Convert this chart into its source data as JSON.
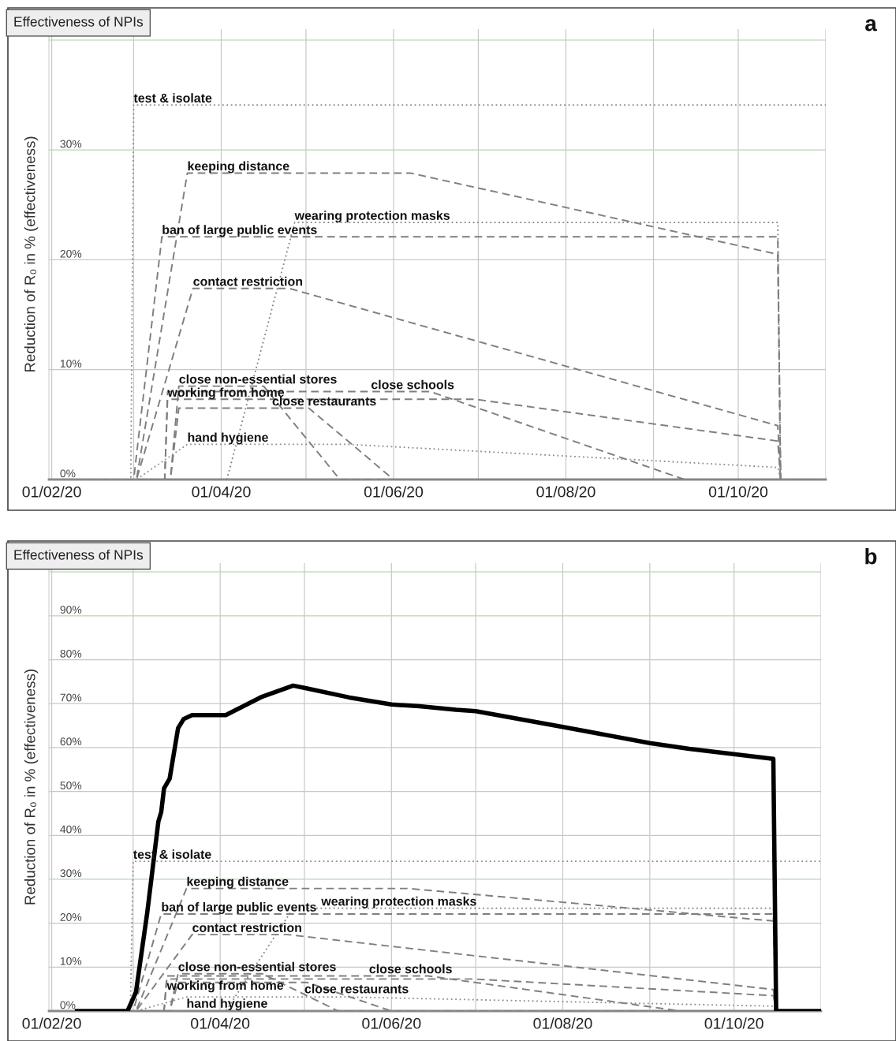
{
  "chart_data": [
    {
      "type": "line",
      "title": "Effectiveness of NPIs",
      "ylabel": "Reduction of R₀ in % (effectiveness)",
      "annotations": [
        "a"
      ],
      "grid": true,
      "xlim": [
        "2020-01-31",
        "2020-11-01"
      ],
      "xticks": [
        {
          "value": "2020-02-01",
          "label": "01/02/20"
        },
        {
          "value": "2020-03-01",
          "label": null
        },
        {
          "value": "2020-04-01",
          "label": "01/04/20"
        },
        {
          "value": "2020-05-01",
          "label": null
        },
        {
          "value": "2020-06-01",
          "label": "01/06/20"
        },
        {
          "value": "2020-07-01",
          "label": null
        },
        {
          "value": "2020-08-01",
          "label": "01/08/20"
        },
        {
          "value": "2020-09-01",
          "label": null
        },
        {
          "value": "2020-10-01",
          "label": "01/10/20"
        },
        {
          "value": "2020-11-01",
          "label": null
        }
      ],
      "ylim": [
        0,
        41
      ],
      "yticks": [
        {
          "value": 0,
          "label": "0%"
        },
        {
          "value": 10,
          "label": "10%"
        },
        {
          "value": 20,
          "label": "20%"
        },
        {
          "value": 30,
          "label": "30%"
        },
        {
          "value": 40,
          "label": null
        }
      ],
      "series": [
        {
          "name": "test & isolate",
          "color": "#8c8c8c",
          "line_style": "dotted",
          "x": [
            "2020-02-10",
            "2020-02-29",
            "2020-03-01",
            "2020-11-01"
          ],
          "values": [
            0,
            0,
            34.1,
            34.1
          ]
        },
        {
          "name": "keeping distance",
          "color": "#7f7f7f",
          "line_style": "dashed",
          "x": [
            "2020-02-10",
            "2020-03-02",
            "2020-03-20",
            "2020-06-07",
            "2020-10-15",
            "2020-10-16",
            "2020-11-01"
          ],
          "values": [
            0,
            0,
            27.9,
            27.9,
            20.5,
            0,
            0
          ]
        },
        {
          "name": "wearing protection masks",
          "color": "#7f7f7f",
          "line_style": "dotted",
          "x": [
            "2020-02-10",
            "2020-04-03",
            "2020-04-27",
            "2020-10-15",
            "2020-10-16",
            "2020-11-01"
          ],
          "values": [
            0,
            0,
            23.4,
            23.4,
            0,
            0
          ]
        },
        {
          "name": "ban of large public events",
          "color": "#7f7f7f",
          "line_style": "dashed",
          "x": [
            "2020-02-10",
            "2020-03-01",
            "2020-03-11",
            "2020-10-15",
            "2020-10-16",
            "2020-11-01"
          ],
          "values": [
            0,
            0,
            22.1,
            22.1,
            0,
            0
          ]
        },
        {
          "name": "contact restriction",
          "color": "#7f7f7f",
          "line_style": "dashed",
          "x": [
            "2020-02-10",
            "2020-03-02",
            "2020-03-22",
            "2020-04-25",
            "2020-10-15",
            "2020-10-16",
            "2020-11-01"
          ],
          "values": [
            0,
            0,
            17.4,
            17.4,
            4.9,
            0,
            0
          ]
        },
        {
          "name": "close non-essential stores",
          "color": "#7f7f7f",
          "line_style": "dashed",
          "x": [
            "2020-02-10",
            "2020-03-14",
            "2020-03-17",
            "2020-04-16",
            "2020-05-13",
            "2020-11-01"
          ],
          "values": [
            0,
            0,
            8.5,
            8.5,
            0,
            0
          ]
        },
        {
          "name": "working from home",
          "color": "#7f7f7f",
          "line_style": "dashed",
          "x": [
            "2020-02-10",
            "2020-03-12",
            "2020-03-13",
            "2020-06-30",
            "2020-10-15",
            "2020-10-16",
            "2020-11-01"
          ],
          "values": [
            0,
            0,
            7.3,
            7.3,
            3.5,
            0,
            0
          ]
        },
        {
          "name": "close restaurants",
          "color": "#7f7f7f",
          "line_style": "dashed",
          "x": [
            "2020-02-10",
            "2020-03-14",
            "2020-03-17",
            "2020-05-02",
            "2020-06-01",
            "2020-11-01"
          ],
          "values": [
            0,
            0,
            6.5,
            6.5,
            0,
            0
          ]
        },
        {
          "name": "close schools",
          "color": "#7f7f7f",
          "line_style": "dashed",
          "x": [
            "2020-02-10",
            "2020-03-12",
            "2020-03-13",
            "2020-06-14",
            "2020-09-12",
            "2020-11-01"
          ],
          "values": [
            0,
            0,
            8.0,
            8.0,
            0,
            0
          ]
        },
        {
          "name": "hand hygiene",
          "color": "#8c8c8c",
          "line_style": "dotted",
          "x": [
            "2020-02-10",
            "2020-03-02",
            "2020-03-20",
            "2020-05-16",
            "2020-10-15",
            "2020-10-16",
            "2020-11-01"
          ],
          "values": [
            0,
            0,
            3.2,
            3.2,
            1.1,
            0,
            0
          ]
        }
      ]
    },
    {
      "type": "line",
      "title": "Effectiveness of NPIs",
      "ylabel": "Reduction of R₀ in % (effectiveness)",
      "annotations": [
        "b"
      ],
      "grid": true,
      "xlim": [
        "2020-01-31",
        "2020-11-01"
      ],
      "xticks": [
        {
          "value": "2020-02-01",
          "label": "01/02/20"
        },
        {
          "value": "2020-03-01",
          "label": null
        },
        {
          "value": "2020-04-01",
          "label": "01/04/20"
        },
        {
          "value": "2020-05-01",
          "label": null
        },
        {
          "value": "2020-06-01",
          "label": "01/06/20"
        },
        {
          "value": "2020-07-01",
          "label": null
        },
        {
          "value": "2020-08-01",
          "label": "01/08/20"
        },
        {
          "value": "2020-09-01",
          "label": null
        },
        {
          "value": "2020-10-01",
          "label": "01/10/20"
        },
        {
          "value": "2020-11-01",
          "label": null
        }
      ],
      "ylim": [
        0,
        102
      ],
      "yticks": [
        {
          "value": 0,
          "label": "0%"
        },
        {
          "value": 10,
          "label": "10%"
        },
        {
          "value": 20,
          "label": "20%"
        },
        {
          "value": 30,
          "label": "30%"
        },
        {
          "value": 40,
          "label": "40%"
        },
        {
          "value": 50,
          "label": "50%"
        },
        {
          "value": 60,
          "label": "60%"
        },
        {
          "value": 70,
          "label": "70%"
        },
        {
          "value": 80,
          "label": "80%"
        },
        {
          "value": 90,
          "label": "90%"
        },
        {
          "value": 100,
          "label": null
        }
      ],
      "series": [
        {
          "name": "test & isolate",
          "color": "#8c8c8c",
          "line_style": "dotted",
          "x": [
            "2020-02-10",
            "2020-02-29",
            "2020-03-01",
            "2020-11-01"
          ],
          "values": [
            0,
            0,
            34.1,
            34.1
          ]
        },
        {
          "name": "keeping distance",
          "color": "#7f7f7f",
          "line_style": "dashed",
          "x": [
            "2020-02-10",
            "2020-03-02",
            "2020-03-20",
            "2020-06-07",
            "2020-10-15",
            "2020-10-16",
            "2020-11-01"
          ],
          "values": [
            0,
            0,
            27.9,
            27.9,
            20.5,
            0,
            0
          ]
        },
        {
          "name": "wearing protection masks",
          "color": "#7f7f7f",
          "line_style": "dotted",
          "x": [
            "2020-02-10",
            "2020-04-03",
            "2020-04-27",
            "2020-10-15",
            "2020-10-16",
            "2020-11-01"
          ],
          "values": [
            0,
            0,
            23.4,
            23.4,
            0,
            0
          ]
        },
        {
          "name": "ban of large public events",
          "color": "#7f7f7f",
          "line_style": "dashed",
          "x": [
            "2020-02-10",
            "2020-03-01",
            "2020-03-11",
            "2020-10-15",
            "2020-10-16",
            "2020-11-01"
          ],
          "values": [
            0,
            0,
            22.1,
            22.1,
            0,
            0
          ]
        },
        {
          "name": "contact restriction",
          "color": "#7f7f7f",
          "line_style": "dashed",
          "x": [
            "2020-02-10",
            "2020-03-02",
            "2020-03-22",
            "2020-04-25",
            "2020-10-15",
            "2020-10-16",
            "2020-11-01"
          ],
          "values": [
            0,
            0,
            17.4,
            17.4,
            4.9,
            0,
            0
          ]
        },
        {
          "name": "close non-essential stores",
          "color": "#7f7f7f",
          "line_style": "dashed",
          "x": [
            "2020-02-10",
            "2020-03-14",
            "2020-03-17",
            "2020-04-16",
            "2020-05-13",
            "2020-11-01"
          ],
          "values": [
            0,
            0,
            8.5,
            8.5,
            0,
            0
          ]
        },
        {
          "name": "working from home",
          "color": "#7f7f7f",
          "line_style": "dashed",
          "x": [
            "2020-02-10",
            "2020-03-12",
            "2020-03-13",
            "2020-06-30",
            "2020-10-15",
            "2020-10-16",
            "2020-11-01"
          ],
          "values": [
            0,
            0,
            7.3,
            7.3,
            3.5,
            0,
            0
          ]
        },
        {
          "name": "close restaurants",
          "color": "#7f7f7f",
          "line_style": "dashed",
          "x": [
            "2020-02-10",
            "2020-03-14",
            "2020-03-17",
            "2020-05-02",
            "2020-06-01",
            "2020-11-01"
          ],
          "values": [
            0,
            0,
            6.5,
            6.5,
            0,
            0
          ]
        },
        {
          "name": "close schools",
          "color": "#7f7f7f",
          "line_style": "dashed",
          "x": [
            "2020-02-10",
            "2020-03-12",
            "2020-03-13",
            "2020-06-14",
            "2020-09-12",
            "2020-11-01"
          ],
          "values": [
            0,
            0,
            8.0,
            8.0,
            0,
            0
          ]
        },
        {
          "name": "hand hygiene",
          "color": "#8c8c8c",
          "line_style": "dotted",
          "x": [
            "2020-02-10",
            "2020-03-02",
            "2020-03-20",
            "2020-05-16",
            "2020-10-15",
            "2020-10-16",
            "2020-11-01"
          ],
          "values": [
            0,
            0,
            3.2,
            3.2,
            1.1,
            0,
            0
          ]
        },
        {
          "color": "#000000",
          "line_style": "solid",
          "x": [
            "2020-02-10",
            "2020-02-28",
            "2020-03-02",
            "2020-03-06",
            "2020-03-10",
            "2020-03-11",
            "2020-03-12",
            "2020-03-14",
            "2020-03-17",
            "2020-03-19",
            "2020-03-22",
            "2020-04-03",
            "2020-04-16",
            "2020-04-27",
            "2020-05-01",
            "2020-05-17",
            "2020-06-01",
            "2020-06-11",
            "2020-06-24",
            "2020-07-01",
            "2020-08-01",
            "2020-09-01",
            "2020-09-15",
            "2020-10-15",
            "2020-10-16",
            "2020-11-01"
          ],
          "values": [
            0,
            0,
            4.3,
            22.3,
            43.2,
            45.3,
            50.7,
            52.9,
            64.4,
            66.5,
            67.4,
            67.4,
            71.6,
            74.1,
            73.6,
            71.4,
            69.8,
            69.4,
            68.6,
            68.3,
            64.7,
            61.0,
            59.7,
            57.4,
            0,
            0
          ]
        }
      ]
    }
  ]
}
